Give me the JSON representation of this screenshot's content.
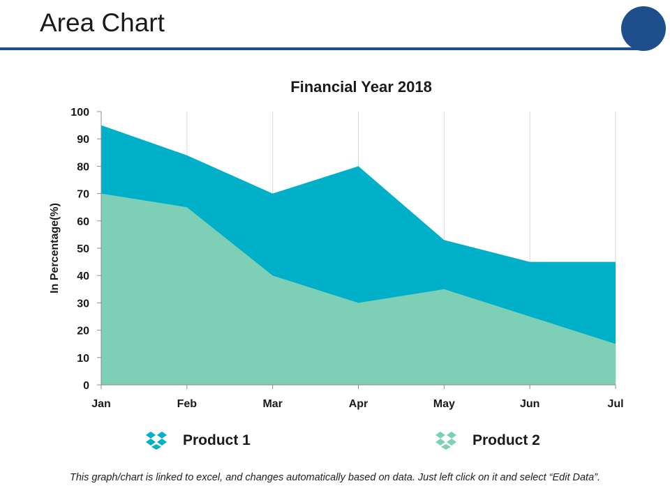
{
  "slide": {
    "title": "Area Chart",
    "footnote": "This graph/chart is linked to excel, and changes automatically based on data. Just left click on it and select “Edit Data”."
  },
  "colors": {
    "accent": "#1f4e8c",
    "product1": "#00b0c8",
    "product2": "#7dcfb6"
  },
  "legend": [
    {
      "label": "Product 1",
      "icon": "dropbox-icon",
      "color": "#00b0c8"
    },
    {
      "label": "Product 2",
      "icon": "dropbox-icon",
      "color": "#7dcfb6"
    }
  ],
  "chart_data": {
    "type": "area",
    "title": "Financial Year 2018",
    "xlabel": "",
    "ylabel": "In Percentage(%)",
    "categories": [
      "Jan",
      "Feb",
      "Mar",
      "Apr",
      "May",
      "Jun",
      "Jul"
    ],
    "ylim": [
      0,
      100
    ],
    "yticks": [
      0,
      10,
      20,
      30,
      40,
      50,
      60,
      70,
      80,
      90,
      100
    ],
    "grid": "vertical",
    "legend_position": "bottom",
    "series": [
      {
        "name": "Product 1",
        "values": [
          95,
          84,
          70,
          80,
          53,
          45,
          45
        ],
        "color": "#00b0c8"
      },
      {
        "name": "Product 2",
        "values": [
          70,
          65,
          40,
          30,
          35,
          25,
          15
        ],
        "color": "#7dcfb6"
      }
    ]
  }
}
